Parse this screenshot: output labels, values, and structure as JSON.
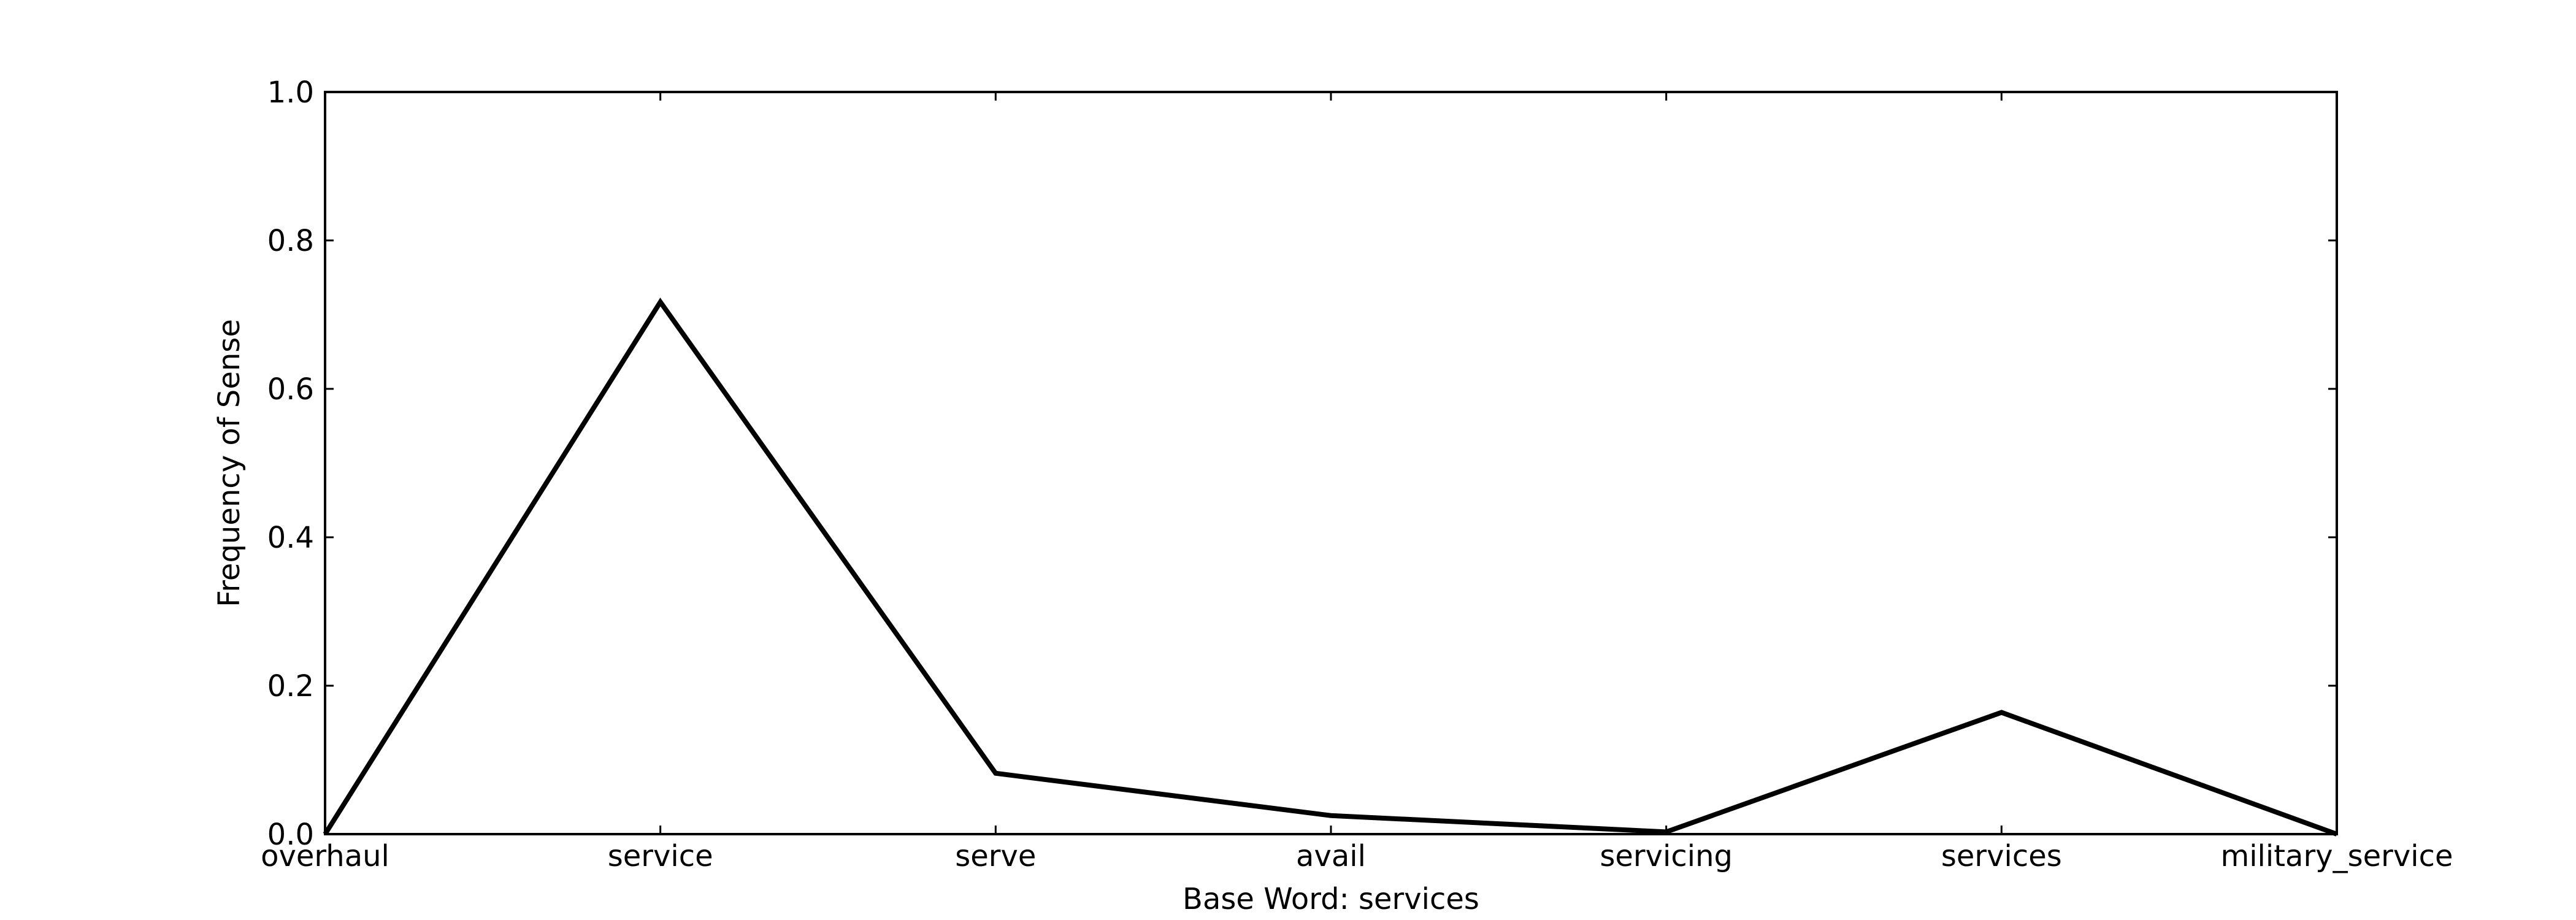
{
  "chart_data": {
    "type": "line",
    "title": "",
    "xlabel": "Base Word: services",
    "ylabel": "Frequency of Sense",
    "categories": [
      "overhaul",
      "service",
      "serve",
      "avail",
      "servicing",
      "services",
      "military_service"
    ],
    "series": [
      {
        "values": [
          0.0,
          0.717,
          0.082,
          0.025,
          0.003,
          0.164,
          0.0
        ]
      }
    ],
    "ylim": [
      0.0,
      1.0
    ],
    "yticks": [
      "0.0",
      "0.2",
      "0.4",
      "0.6",
      "0.8",
      "1.0"
    ],
    "grid": false,
    "line_color": "#000000"
  }
}
